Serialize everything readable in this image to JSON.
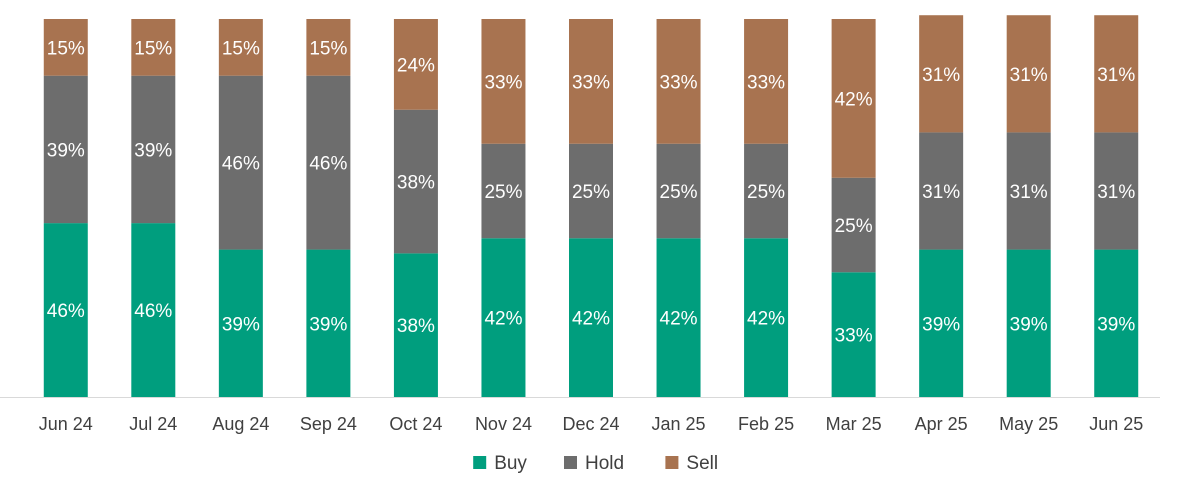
{
  "chart_data": {
    "type": "bar",
    "stacked": true,
    "percent": true,
    "categories": [
      "Jun 24",
      "Jul 24",
      "Aug 24",
      "Sep 24",
      "Oct 24",
      "Nov 24",
      "Dec 24",
      "Jan 25",
      "Feb 25",
      "Mar 25",
      "Apr 25",
      "May 25",
      "Jun 25"
    ],
    "series": [
      {
        "name": "Buy",
        "color": "#009e7e",
        "values": [
          46,
          46,
          39,
          39,
          38,
          42,
          42,
          42,
          42,
          33,
          39,
          39,
          39
        ]
      },
      {
        "name": "Hold",
        "color": "#6d6d6d",
        "values": [
          39,
          39,
          46,
          46,
          38,
          25,
          25,
          25,
          25,
          25,
          31,
          31,
          31
        ]
      },
      {
        "name": "Sell",
        "color": "#a87350",
        "values": [
          15,
          15,
          15,
          15,
          24,
          33,
          33,
          33,
          33,
          42,
          31,
          31,
          31
        ]
      }
    ],
    "ylim": [
      0,
      100
    ],
    "value_suffix": "%",
    "grid": false,
    "legend_position": "bottom",
    "title": "",
    "xlabel": "",
    "ylabel": ""
  }
}
